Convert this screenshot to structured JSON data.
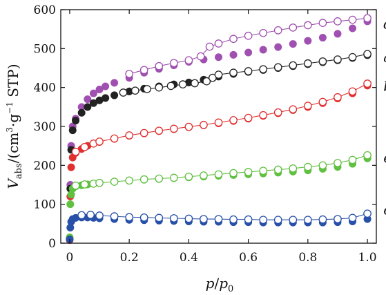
{
  "chart_data": {
    "type": "scatter",
    "xlabel": {
      "main": "p",
      "slash": "/",
      "sub_main": "p",
      "sub": "0"
    },
    "ylabel": {
      "main": "V",
      "sub": "abs",
      "rest1": "/(cm",
      "sup": "3",
      "rest2": "·g",
      "sup2": "−1",
      "rest3": " STP)"
    },
    "xlim": [
      -0.03,
      1.03
    ],
    "ylim": [
      0,
      600
    ],
    "xticks": [
      0,
      0.2,
      0.4,
      0.6,
      0.8,
      1.0
    ],
    "xtick_labels": [
      "0",
      "0.2",
      "0.4",
      "0.6",
      "0.8",
      "1.0"
    ],
    "yticks": [
      0,
      100,
      200,
      300,
      400,
      500,
      600
    ],
    "ytick_labels": [
      "0",
      "100",
      "200",
      "300",
      "400",
      "500",
      "600"
    ],
    "grid": false,
    "legend": "inline labels at right end",
    "series": [
      {
        "name": "d",
        "color": "#a050b0",
        "adsorption": {
          "x": [
            0.0,
            0.002,
            0.005,
            0.01,
            0.02,
            0.04,
            0.06,
            0.08,
            0.1,
            0.12,
            0.15,
            0.2,
            0.25,
            0.3,
            0.35,
            0.4,
            0.45,
            0.5,
            0.55,
            0.6,
            0.65,
            0.7,
            0.75,
            0.8,
            0.85,
            0.9,
            0.95,
            1.0
          ],
          "y": [
            10,
            150,
            250,
            300,
            320,
            350,
            370,
            385,
            395,
            403,
            412,
            425,
            438,
            448,
            457,
            466,
            472,
            478,
            484,
            490,
            497,
            504,
            512,
            520,
            528,
            538,
            552,
            570
          ]
        },
        "desorption": {
          "x": [
            0.2,
            0.25,
            0.3,
            0.35,
            0.4,
            0.44,
            0.47,
            0.5,
            0.55,
            0.6,
            0.65,
            0.7,
            0.75,
            0.8,
            0.85,
            0.9,
            0.95,
            1.0
          ],
          "y": [
            435,
            445,
            455,
            463,
            470,
            480,
            505,
            513,
            525,
            533,
            540,
            547,
            554,
            560,
            566,
            570,
            574,
            578
          ]
        },
        "label_at": [
          1.04,
          562
        ]
      },
      {
        "name": "a",
        "color": "#222222",
        "adsorption": {
          "x": [
            0.0,
            0.002,
            0.005,
            0.01,
            0.02,
            0.04,
            0.06,
            0.08,
            0.1,
            0.12,
            0.15,
            0.2,
            0.25,
            0.3,
            0.35,
            0.4,
            0.45,
            0.5,
            0.55,
            0.6,
            0.65,
            0.7,
            0.75,
            0.8,
            0.85,
            0.9,
            0.95,
            1.0
          ],
          "y": [
            10,
            140,
            240,
            290,
            315,
            335,
            350,
            360,
            367,
            373,
            380,
            390,
            397,
            403,
            408,
            413,
            420,
            428,
            435,
            440,
            445,
            450,
            455,
            460,
            465,
            470,
            476,
            483
          ]
        },
        "desorption": {
          "x": [
            0.18,
            0.22,
            0.26,
            0.3,
            0.34,
            0.38,
            0.42,
            0.46,
            0.48,
            0.5,
            0.55,
            0.6,
            0.65,
            0.7,
            0.75,
            0.8,
            0.85,
            0.9,
            0.95,
            1.0
          ],
          "y": [
            387,
            392,
            396,
            400,
            404,
            408,
            411,
            416,
            425,
            433,
            438,
            442,
            447,
            452,
            457,
            462,
            467,
            472,
            478,
            486
          ]
        },
        "label_at": [
          1.04,
          477
        ]
      },
      {
        "name": "b",
        "color": "#e03030",
        "adsorption": {
          "x": [
            0.0,
            0.002,
            0.005,
            0.01,
            0.02,
            0.04,
            0.06,
            0.08,
            0.1,
            0.15,
            0.2,
            0.25,
            0.3,
            0.35,
            0.4,
            0.45,
            0.5,
            0.55,
            0.6,
            0.65,
            0.7,
            0.75,
            0.8,
            0.85,
            0.9,
            0.95,
            1.0
          ],
          "y": [
            8,
            120,
            195,
            220,
            232,
            242,
            250,
            256,
            260,
            268,
            276,
            282,
            288,
            293,
            298,
            303,
            308,
            314,
            320,
            327,
            334,
            342,
            350,
            360,
            372,
            385,
            405
          ]
        },
        "desorption": {
          "x": [
            0.02,
            0.05,
            0.08,
            0.1,
            0.15,
            0.2,
            0.25,
            0.3,
            0.35,
            0.4,
            0.45,
            0.5,
            0.55,
            0.6,
            0.65,
            0.7,
            0.75,
            0.8,
            0.85,
            0.9,
            0.95,
            1.0
          ],
          "y": [
            235,
            247,
            256,
            261,
            269,
            277,
            283,
            289,
            294,
            299,
            304,
            310,
            316,
            322,
            329,
            336,
            344,
            353,
            363,
            375,
            390,
            410
          ]
        },
        "label_at": [
          1.04,
          402
        ]
      },
      {
        "name": "e",
        "color": "#60c040",
        "adsorption": {
          "x": [
            0.0,
            0.002,
            0.005,
            0.01,
            0.02,
            0.04,
            0.06,
            0.08,
            0.1,
            0.15,
            0.2,
            0.25,
            0.3,
            0.35,
            0.4,
            0.45,
            0.5,
            0.55,
            0.6,
            0.65,
            0.7,
            0.75,
            0.8,
            0.85,
            0.9,
            0.95,
            1.0
          ],
          "y": [
            15,
            100,
            125,
            140,
            146,
            149,
            151,
            153,
            155,
            158,
            161,
            163,
            165,
            167,
            169,
            171,
            173,
            175,
            177,
            179,
            181,
            184,
            187,
            191,
            196,
            204,
            218
          ]
        },
        "desorption": {
          "x": [
            0.02,
            0.05,
            0.08,
            0.1,
            0.15,
            0.2,
            0.25,
            0.3,
            0.35,
            0.4,
            0.45,
            0.5,
            0.55,
            0.6,
            0.65,
            0.7,
            0.75,
            0.8,
            0.85,
            0.9,
            0.95,
            1.0
          ],
          "y": [
            148,
            151,
            153,
            155,
            158,
            161,
            164,
            166,
            168,
            171,
            174,
            177,
            180,
            183,
            186,
            189,
            192,
            196,
            200,
            206,
            214,
            226
          ]
        },
        "label_at": [
          1.04,
          218
        ]
      },
      {
        "name": "c",
        "color": "#2850a8",
        "adsorption": {
          "x": [
            0.0,
            0.002,
            0.005,
            0.01,
            0.02,
            0.04,
            0.06,
            0.08,
            0.1,
            0.15,
            0.2,
            0.25,
            0.3,
            0.35,
            0.4,
            0.45,
            0.5,
            0.55,
            0.6,
            0.65,
            0.7,
            0.75,
            0.8,
            0.85,
            0.9,
            0.95,
            1.0
          ],
          "y": [
            10,
            40,
            55,
            62,
            65,
            66,
            66,
            65,
            64,
            62,
            60,
            59,
            58,
            57,
            56,
            55,
            55,
            54,
            54,
            53,
            53,
            53,
            53,
            53,
            54,
            56,
            62
          ]
        },
        "desorption": {
          "x": [
            0.04,
            0.07,
            0.1,
            0.15,
            0.2,
            0.25,
            0.3,
            0.35,
            0.4,
            0.45,
            0.5,
            0.55,
            0.6,
            0.65,
            0.7,
            0.75,
            0.8,
            0.85,
            0.9,
            0.95,
            1.0
          ],
          "y": [
            72,
            73,
            71,
            69,
            67,
            66,
            65,
            64,
            63,
            62,
            62,
            61,
            61,
            60,
            60,
            60,
            60,
            61,
            62,
            65,
            76
          ]
        },
        "label_at": [
          1.04,
          84
        ]
      }
    ]
  }
}
